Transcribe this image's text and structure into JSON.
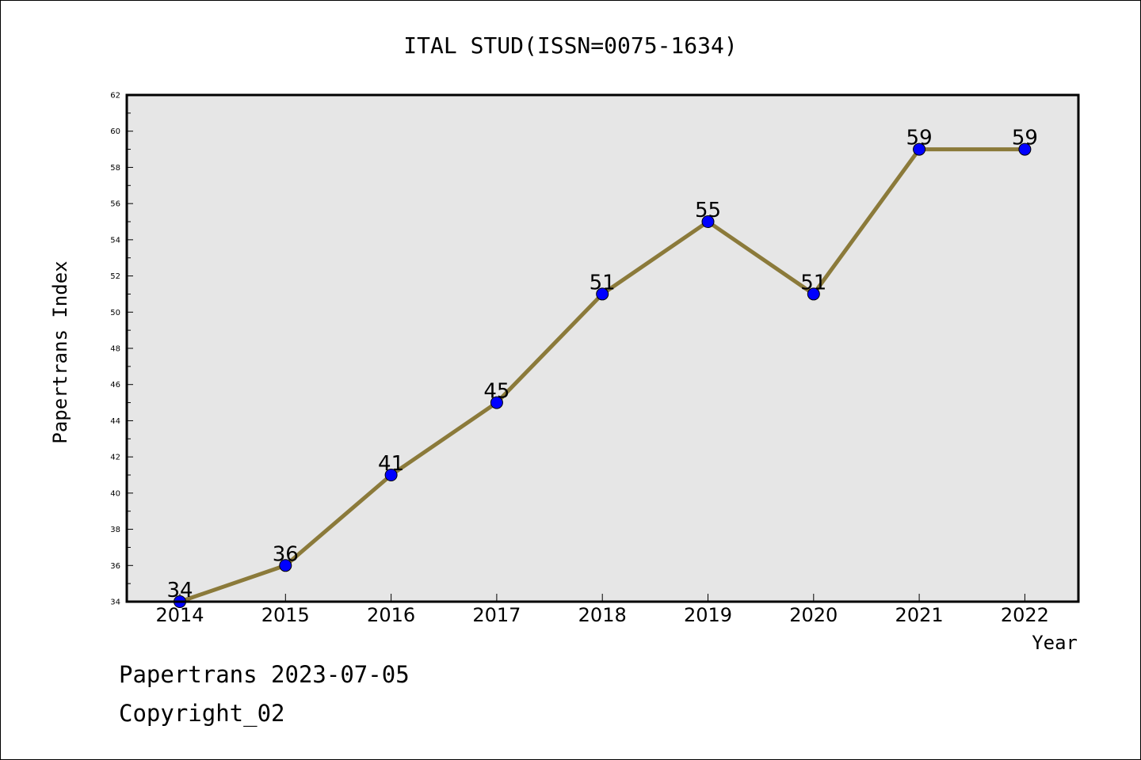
{
  "footer": {
    "date_text": "Papertrans 2023-07-05",
    "copyright_text": "Copyright_02"
  },
  "colors": {
    "plot_bg": "#e6e6e6",
    "line": "#8b7a3a",
    "marker": "#0000ff",
    "axis": "#000000"
  },
  "chart_data": {
    "type": "line",
    "title": "ITAL STUD(ISSN=0075-1634)",
    "xlabel": "Year",
    "ylabel": "Papertrans Index",
    "categories": [
      "2014",
      "2015",
      "2016",
      "2017",
      "2018",
      "2019",
      "2020",
      "2021",
      "2022"
    ],
    "series": [
      {
        "values": [
          34,
          36,
          41,
          45,
          51,
          55,
          51,
          59,
          59
        ]
      }
    ],
    "data_labels": [
      "34",
      "36",
      "41",
      "45",
      "51",
      "55",
      "51",
      "59",
      "59"
    ],
    "ylim": [
      34,
      62
    ],
    "yticks": [
      "34",
      "36",
      "38",
      "40",
      "42",
      "44",
      "46",
      "48",
      "50",
      "52",
      "54",
      "56",
      "58",
      "60",
      "62"
    ],
    "y_minor_step": 1,
    "grid": false,
    "legend": "none"
  }
}
